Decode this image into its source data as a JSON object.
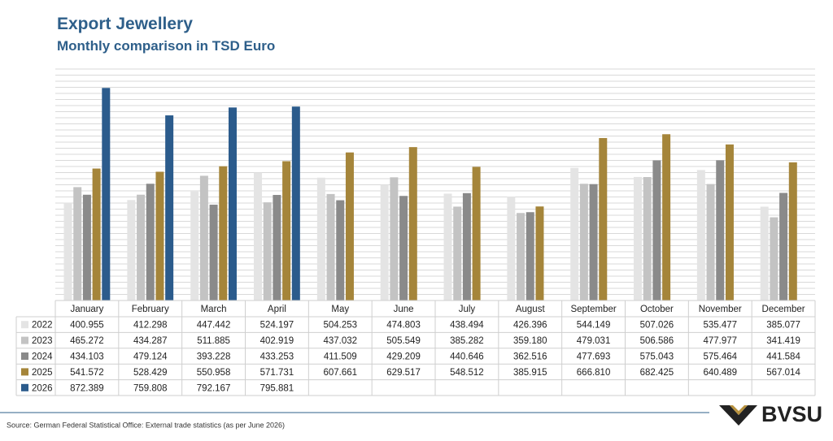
{
  "chart_data": {
    "type": "bar",
    "title": "Export Jewellery",
    "subtitle": "Monthly comparison in TSD Euro",
    "categories": [
      "January",
      "February",
      "March",
      "April",
      "May",
      "June",
      "July",
      "August",
      "September",
      "October",
      "November",
      "December"
    ],
    "series": [
      {
        "name": "2022",
        "color": "#e4e4e4",
        "values": [
          400955,
          412298,
          447442,
          524197,
          504253,
          474803,
          438494,
          426396,
          544149,
          507026,
          535477,
          385077
        ],
        "value_labels": [
          "400.955",
          "412.298",
          "447.442",
          "524.197",
          "504.253",
          "474.803",
          "438.494",
          "426.396",
          "544.149",
          "507.026",
          "535.477",
          "385.077"
        ]
      },
      {
        "name": "2023",
        "color": "#c3c3c3",
        "values": [
          465272,
          434287,
          511885,
          402919,
          437032,
          505549,
          385282,
          359180,
          479031,
          506586,
          477977,
          341419
        ],
        "value_labels": [
          "465.272",
          "434.287",
          "511.885",
          "402.919",
          "437.032",
          "505.549",
          "385.282",
          "359.180",
          "479.031",
          "506.586",
          "477.977",
          "341.419"
        ]
      },
      {
        "name": "2024",
        "color": "#8a8a8a",
        "values": [
          434103,
          479124,
          393228,
          433253,
          411509,
          429209,
          440646,
          362516,
          477693,
          575043,
          575464,
          441584
        ],
        "value_labels": [
          "434.103",
          "479.124",
          "393.228",
          "433.253",
          "411.509",
          "429.209",
          "440.646",
          "362.516",
          "477.693",
          "575.043",
          "575.464",
          "441.584"
        ]
      },
      {
        "name": "2025",
        "color": "#a5853a",
        "values": [
          541572,
          528429,
          550958,
          571731,
          607661,
          629517,
          548512,
          385915,
          666810,
          682425,
          640489,
          567014
        ],
        "value_labels": [
          "541.572",
          "528.429",
          "550.958",
          "571.731",
          "607.661",
          "629.517",
          "548.512",
          "385.915",
          "666.810",
          "682.425",
          "640.489",
          "567.014"
        ]
      },
      {
        "name": "2026",
        "color": "#2b5b8c",
        "values": [
          872389,
          759808,
          792167,
          795881,
          null,
          null,
          null,
          null,
          null,
          null,
          null,
          null
        ],
        "value_labels": [
          "872.389",
          "759.808",
          "792.167",
          "795.881",
          null,
          null,
          null,
          null,
          null,
          null,
          null,
          null
        ]
      }
    ],
    "ylim": [
      0,
      950000
    ],
    "yticks": [
      0,
      25000,
      50000,
      75000,
      100000,
      125000,
      150000,
      175000,
      200000,
      225000,
      250000,
      275000,
      300000,
      325000,
      350000,
      375000,
      400000,
      425000,
      450000,
      475000,
      500000,
      525000,
      550000,
      575000,
      600000,
      625000,
      650000,
      675000,
      700000,
      725000,
      750000,
      775000,
      800000,
      825000,
      850000,
      875000,
      900000,
      925000,
      950000
    ],
    "grid": true
  },
  "source": "Source: German Federal Statistical Office: External trade statistics (as per June 2026)",
  "logo": "BVSU"
}
